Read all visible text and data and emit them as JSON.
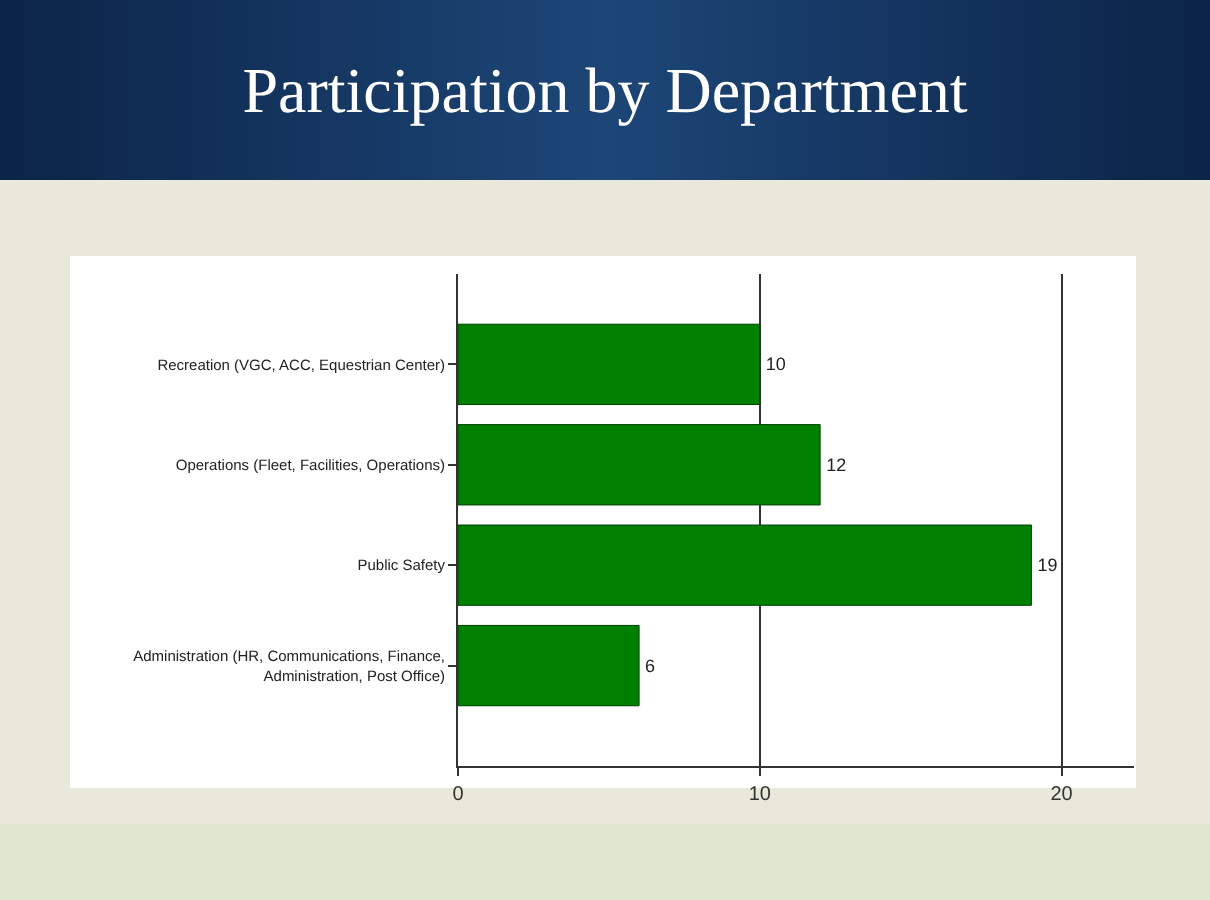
{
  "chart_data": {
    "type": "bar",
    "orientation": "horizontal",
    "title": "Participation by Department",
    "categories": [
      "Recreation (VGC, ACC, Equestrian Center)",
      "Operations (Fleet, Facilities, Operations)",
      "Public Safety",
      "Administration (HR, Communications, Finance, Administration, Post Office)"
    ],
    "values": [
      10,
      12,
      19,
      6
    ],
    "color": "#008000",
    "xlim": [
      0,
      22.4
    ],
    "xticks": [
      0,
      10,
      20
    ],
    "grid": "x",
    "data_labels": true,
    "legend": false
  }
}
